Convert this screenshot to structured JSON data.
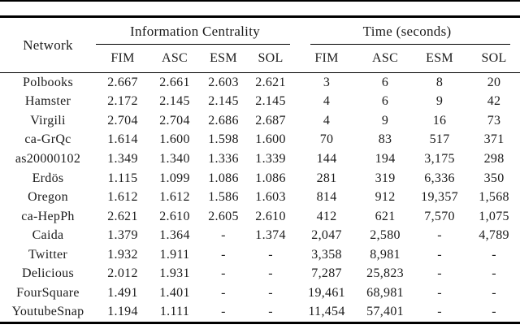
{
  "table": {
    "network_header": "Network",
    "group_headers": {
      "centrality": "Information Centrality",
      "time": "Time (seconds)"
    },
    "sub_headers": [
      "FIM",
      "ASC",
      "ESM",
      "SOL",
      "FIM",
      "ASC",
      "ESM",
      "SOL"
    ],
    "rows": [
      {
        "network": "Polbooks",
        "values": [
          "2.667",
          "2.661",
          "2.603",
          "2.621",
          "3",
          "6",
          "8",
          "20"
        ]
      },
      {
        "network": "Hamster",
        "values": [
          "2.172",
          "2.145",
          "2.145",
          "2.145",
          "4",
          "6",
          "9",
          "42"
        ]
      },
      {
        "network": "Virgili",
        "values": [
          "2.704",
          "2.704",
          "2.686",
          "2.687",
          "4",
          "9",
          "16",
          "73"
        ]
      },
      {
        "network": "ca-GrQc",
        "values": [
          "1.614",
          "1.600",
          "1.598",
          "1.600",
          "70",
          "83",
          "517",
          "371"
        ]
      },
      {
        "network": "as20000102",
        "values": [
          "1.349",
          "1.340",
          "1.336",
          "1.339",
          "144",
          "194",
          "3,175",
          "298"
        ]
      },
      {
        "network": "Erdös",
        "values": [
          "1.115",
          "1.099",
          "1.086",
          "1.086",
          "281",
          "319",
          "6,336",
          "350"
        ]
      },
      {
        "network": "Oregon",
        "values": [
          "1.612",
          "1.612",
          "1.586",
          "1.603",
          "814",
          "912",
          "19,357",
          "1,568"
        ]
      },
      {
        "network": "ca-HepPh",
        "values": [
          "2.621",
          "2.610",
          "2.605",
          "2.610",
          "412",
          "621",
          "7,570",
          "1,075"
        ]
      },
      {
        "network": "Caida",
        "values": [
          "1.379",
          "1.364",
          "-",
          "1.374",
          "2,047",
          "2,580",
          "-",
          "4,789"
        ]
      },
      {
        "network": "Twitter",
        "values": [
          "1.932",
          "1.911",
          "-",
          "-",
          "3,358",
          "8,981",
          "-",
          "-"
        ]
      },
      {
        "network": "Delicious",
        "values": [
          "2.012",
          "1.931",
          "-",
          "-",
          "7,287",
          "25,823",
          "-",
          "-"
        ]
      },
      {
        "network": "FourSquare",
        "values": [
          "1.491",
          "1.401",
          "-",
          "-",
          "19,461",
          "68,981",
          "-",
          "-"
        ]
      },
      {
        "network": "YoutubeSnap",
        "values": [
          "1.194",
          "1.111",
          "-",
          "-",
          "11,454",
          "57,401",
          "-",
          "-"
        ]
      }
    ]
  }
}
